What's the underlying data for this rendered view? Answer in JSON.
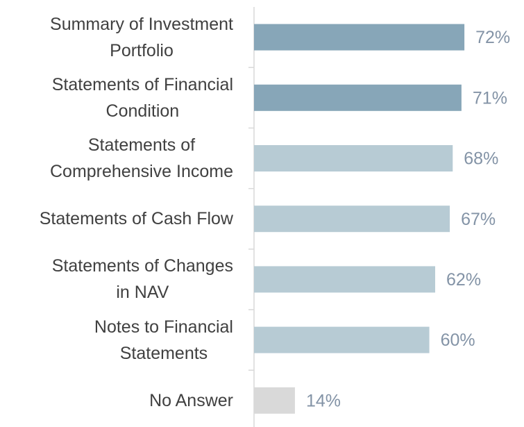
{
  "chart_data": {
    "type": "bar",
    "orientation": "horizontal",
    "categories": [
      "Summary of Investment\nPortfolio",
      "Statements of Financial\nCondition",
      "Statements of\nComprehensive Income",
      "Statements of Cash Flow",
      "Statements of Changes\nin NAV",
      "Notes to Financial\nStatements",
      "No Answer"
    ],
    "values": [
      72,
      71,
      68,
      67,
      62,
      60,
      14
    ],
    "value_labels": [
      "72%",
      "71%",
      "68%",
      "67%",
      "62%",
      "60%",
      "14%"
    ],
    "colors": [
      "#87a6b8",
      "#87a6b8",
      "#b7cbd4",
      "#b7cbd4",
      "#b7cbd4",
      "#b7cbd4",
      "#d9d9d9"
    ]
  }
}
